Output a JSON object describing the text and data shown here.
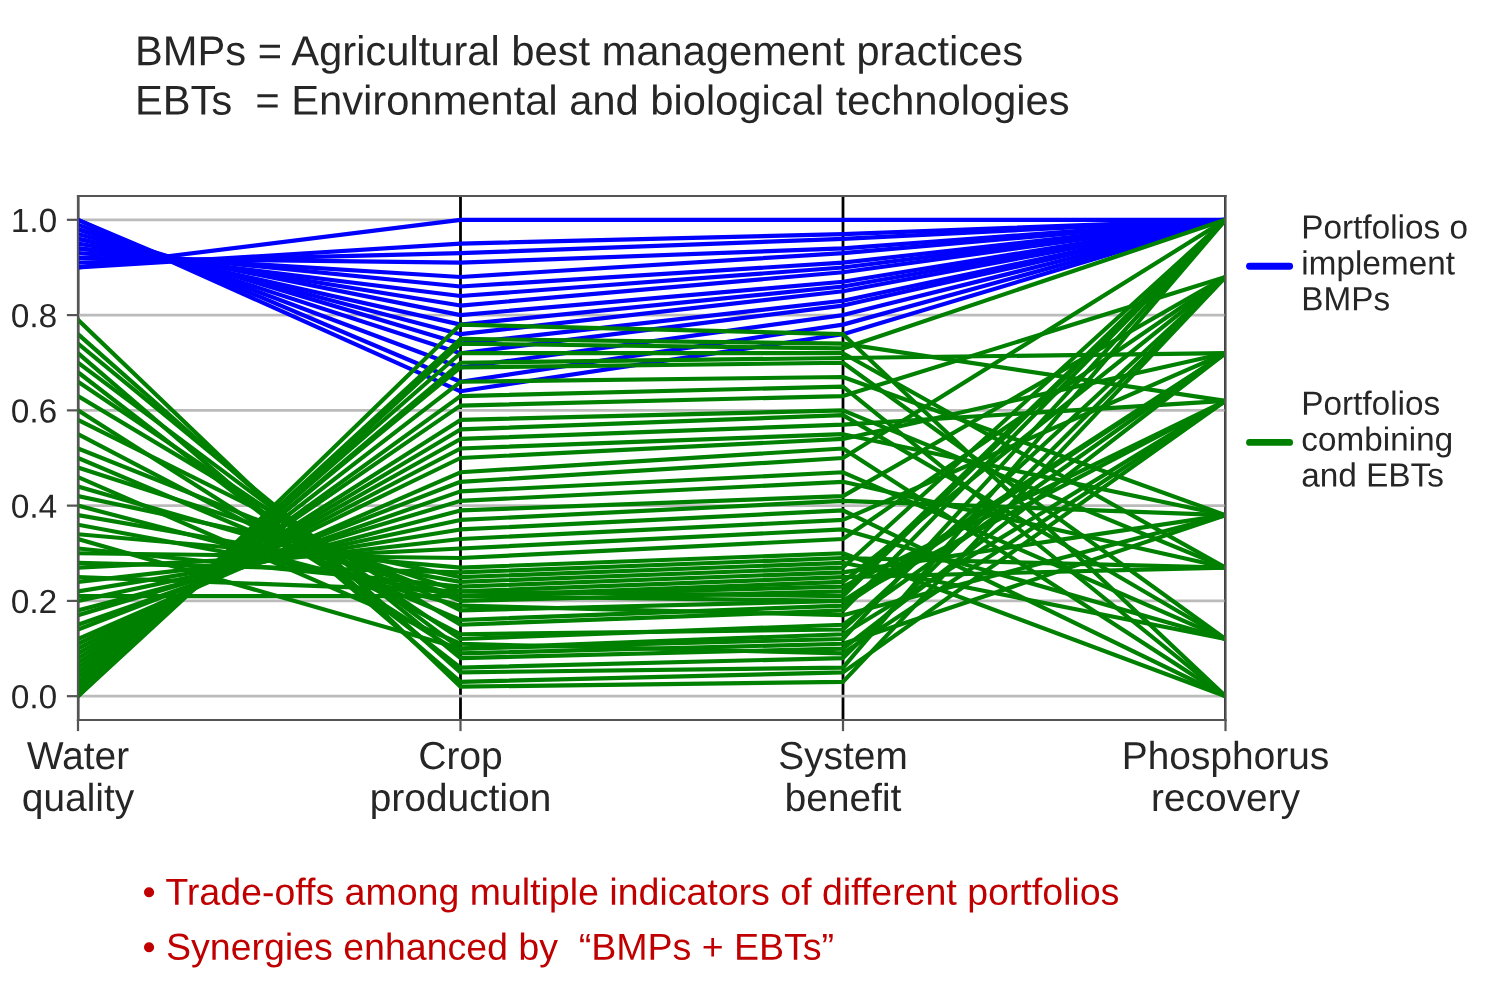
{
  "chart_data": {
    "type": "line",
    "title": "BMPs = Agricultural best management practices\nEBTs  = Environmental and biological technologies",
    "categories": [
      "Water\nquality",
      "Crop\nproduction",
      "System\nbenefit",
      "Phosphorus\nrecovery"
    ],
    "ylim": [
      -0.05,
      1.05
    ],
    "yticks": [
      {
        "value": 0,
        "label": "0.0"
      },
      {
        "value": 0.2,
        "label": "0.2"
      },
      {
        "value": 0.4,
        "label": "0.4"
      },
      {
        "value": 0.6,
        "label": "0.6"
      },
      {
        "value": 0.8,
        "label": "0.8"
      },
      {
        "value": 1,
        "label": "1.0"
      }
    ],
    "grid": true,
    "legend": "right",
    "annotations": [
      "• Trade-offs among multiple indicators of different portfolios",
      "• Synergies enhanced by  “BMPs + EBTs”"
    ],
    "series": [
      {
        "name": "Portfolios o\nimplement\nBMPs",
        "color": "#0000ff",
        "values": [
          0.9,
          1.0,
          1.0,
          1.0
        ]
      },
      {
        "color": "#0000ff",
        "values": [
          0.9,
          0.95,
          0.97,
          1.0
        ]
      },
      {
        "color": "#0000ff",
        "values": [
          0.91,
          0.93,
          0.96,
          1.0
        ]
      },
      {
        "color": "#0000ff",
        "values": [
          0.92,
          0.91,
          0.94,
          1.0
        ]
      },
      {
        "color": "#0000ff",
        "values": [
          0.93,
          0.88,
          0.93,
          1.0
        ]
      },
      {
        "color": "#0000ff",
        "values": [
          0.94,
          0.86,
          0.91,
          1.0
        ]
      },
      {
        "color": "#0000ff",
        "values": [
          0.94,
          0.84,
          0.9,
          1.0
        ]
      },
      {
        "color": "#0000ff",
        "values": [
          0.95,
          0.82,
          0.89,
          1.0
        ]
      },
      {
        "color": "#0000ff",
        "values": [
          0.96,
          0.8,
          0.87,
          1.0
        ]
      },
      {
        "color": "#0000ff",
        "values": [
          0.96,
          0.78,
          0.86,
          1.0
        ]
      },
      {
        "color": "#0000ff",
        "values": [
          0.97,
          0.76,
          0.85,
          1.0
        ]
      },
      {
        "color": "#0000ff",
        "values": [
          0.98,
          0.74,
          0.83,
          1.0
        ]
      },
      {
        "color": "#0000ff",
        "values": [
          0.98,
          0.72,
          0.82,
          1.0
        ]
      },
      {
        "color": "#0000ff",
        "values": [
          0.99,
          0.69,
          0.8,
          1.0
        ]
      },
      {
        "color": "#0000ff",
        "values": [
          1.0,
          0.66,
          0.78,
          1.0
        ]
      },
      {
        "color": "#0000ff",
        "values": [
          1.0,
          0.64,
          0.76,
          1.0
        ]
      },
      {
        "name": "Portfolios\ncombining\nand EBTs",
        "color": "#008000",
        "values": [
          0.79,
          0.02,
          0.03,
          0.88
        ]
      },
      {
        "color": "#008000",
        "values": [
          0.76,
          0.05,
          0.06,
          1.0
        ]
      },
      {
        "color": "#008000",
        "values": [
          0.74,
          0.08,
          0.1,
          0.72
        ]
      },
      {
        "color": "#008000",
        "values": [
          0.72,
          0.03,
          0.05,
          0.62
        ]
      },
      {
        "color": "#008000",
        "values": [
          0.7,
          0.1,
          0.12,
          1.0
        ]
      },
      {
        "color": "#008000",
        "values": [
          0.68,
          0.06,
          0.08,
          0.88
        ]
      },
      {
        "color": "#008000",
        "values": [
          0.66,
          0.12,
          0.15,
          0.72
        ]
      },
      {
        "color": "#008000",
        "values": [
          0.63,
          0.15,
          0.18,
          1.0
        ]
      },
      {
        "color": "#008000",
        "values": [
          0.6,
          0.09,
          0.11,
          0.38
        ]
      },
      {
        "color": "#008000",
        "values": [
          0.58,
          0.18,
          0.2,
          0.62
        ]
      },
      {
        "color": "#008000",
        "values": [
          0.55,
          0.13,
          0.14,
          0.88
        ]
      },
      {
        "color": "#008000",
        "values": [
          0.52,
          0.2,
          0.22,
          1.0
        ]
      },
      {
        "color": "#008000",
        "values": [
          0.5,
          0.16,
          0.19,
          0.72
        ]
      },
      {
        "color": "#008000",
        "values": [
          0.48,
          0.22,
          0.25,
          0.27
        ]
      },
      {
        "color": "#008000",
        "values": [
          0.46,
          0.11,
          0.09,
          0.62
        ]
      },
      {
        "color": "#008000",
        "values": [
          0.44,
          0.21,
          0.24,
          0.88
        ]
      },
      {
        "color": "#008000",
        "values": [
          0.42,
          0.25,
          0.28,
          0.12
        ]
      },
      {
        "color": "#008000",
        "values": [
          0.4,
          0.19,
          0.17,
          0.38
        ]
      },
      {
        "color": "#008000",
        "values": [
          0.38,
          0.24,
          0.27,
          1.0
        ]
      },
      {
        "color": "#008000",
        "values": [
          0.36,
          0.21,
          0.2,
          0.72
        ]
      },
      {
        "color": "#008000",
        "values": [
          0.34,
          0.27,
          0.3,
          0.0
        ]
      },
      {
        "color": "#008000",
        "values": [
          0.33,
          0.1,
          0.13,
          0.62
        ]
      },
      {
        "color": "#008000",
        "values": [
          0.31,
          0.23,
          0.26,
          0.38
        ]
      },
      {
        "color": "#008000",
        "values": [
          0.3,
          0.29,
          0.33,
          0.88
        ]
      },
      {
        "color": "#008000",
        "values": [
          0.28,
          0.26,
          0.29,
          0.27
        ]
      },
      {
        "color": "#008000",
        "values": [
          0.27,
          0.31,
          0.35,
          0.12
        ]
      },
      {
        "color": "#008000",
        "values": [
          0.25,
          0.22,
          0.21,
          1.0
        ]
      },
      {
        "color": "#008000",
        "values": [
          0.24,
          0.33,
          0.37,
          0.72
        ]
      },
      {
        "color": "#008000",
        "values": [
          0.22,
          0.35,
          0.39,
          0.0
        ]
      },
      {
        "color": "#008000",
        "values": [
          0.21,
          0.21,
          0.23,
          0.62
        ]
      },
      {
        "color": "#008000",
        "values": [
          0.2,
          0.37,
          0.41,
          0.38
        ]
      },
      {
        "color": "#008000",
        "values": [
          0.18,
          0.39,
          0.42,
          0.88
        ]
      },
      {
        "color": "#008000",
        "values": [
          0.17,
          0.41,
          0.45,
          0.27
        ]
      },
      {
        "color": "#008000",
        "values": [
          0.15,
          0.43,
          0.47,
          0.12
        ]
      },
      {
        "color": "#008000",
        "values": [
          0.14,
          0.45,
          0.5,
          1.0
        ]
      },
      {
        "color": "#008000",
        "values": [
          0.12,
          0.47,
          0.52,
          0.0
        ]
      },
      {
        "color": "#008000",
        "values": [
          0.11,
          0.5,
          0.54,
          0.72
        ]
      },
      {
        "color": "#008000",
        "values": [
          0.1,
          0.52,
          0.55,
          0.38
        ]
      },
      {
        "color": "#008000",
        "values": [
          0.09,
          0.54,
          0.57,
          0.62
        ]
      },
      {
        "color": "#008000",
        "values": [
          0.08,
          0.56,
          0.59,
          0.12
        ]
      },
      {
        "color": "#008000",
        "values": [
          0.07,
          0.58,
          0.6,
          0.27
        ]
      },
      {
        "color": "#008000",
        "values": [
          0.06,
          0.61,
          0.63,
          0.88
        ]
      },
      {
        "color": "#008000",
        "values": [
          0.05,
          0.63,
          0.65,
          0.0
        ]
      },
      {
        "color": "#008000",
        "values": [
          0.04,
          0.66,
          0.67,
          0.38
        ]
      },
      {
        "color": "#008000",
        "values": [
          0.03,
          0.69,
          0.7,
          0.12
        ]
      },
      {
        "color": "#008000",
        "values": [
          0.02,
          0.72,
          0.72,
          0.27
        ]
      },
      {
        "color": "#008000",
        "values": [
          0.01,
          0.75,
          0.74,
          0.62
        ]
      },
      {
        "color": "#008000",
        "values": [
          0.0,
          0.78,
          0.76,
          0.0
        ]
      },
      {
        "color": "#008000",
        "values": [
          0.0,
          0.74,
          0.73,
          1.0
        ]
      },
      {
        "color": "#008000",
        "values": [
          0.02,
          0.7,
          0.71,
          0.72
        ]
      }
    ]
  }
}
